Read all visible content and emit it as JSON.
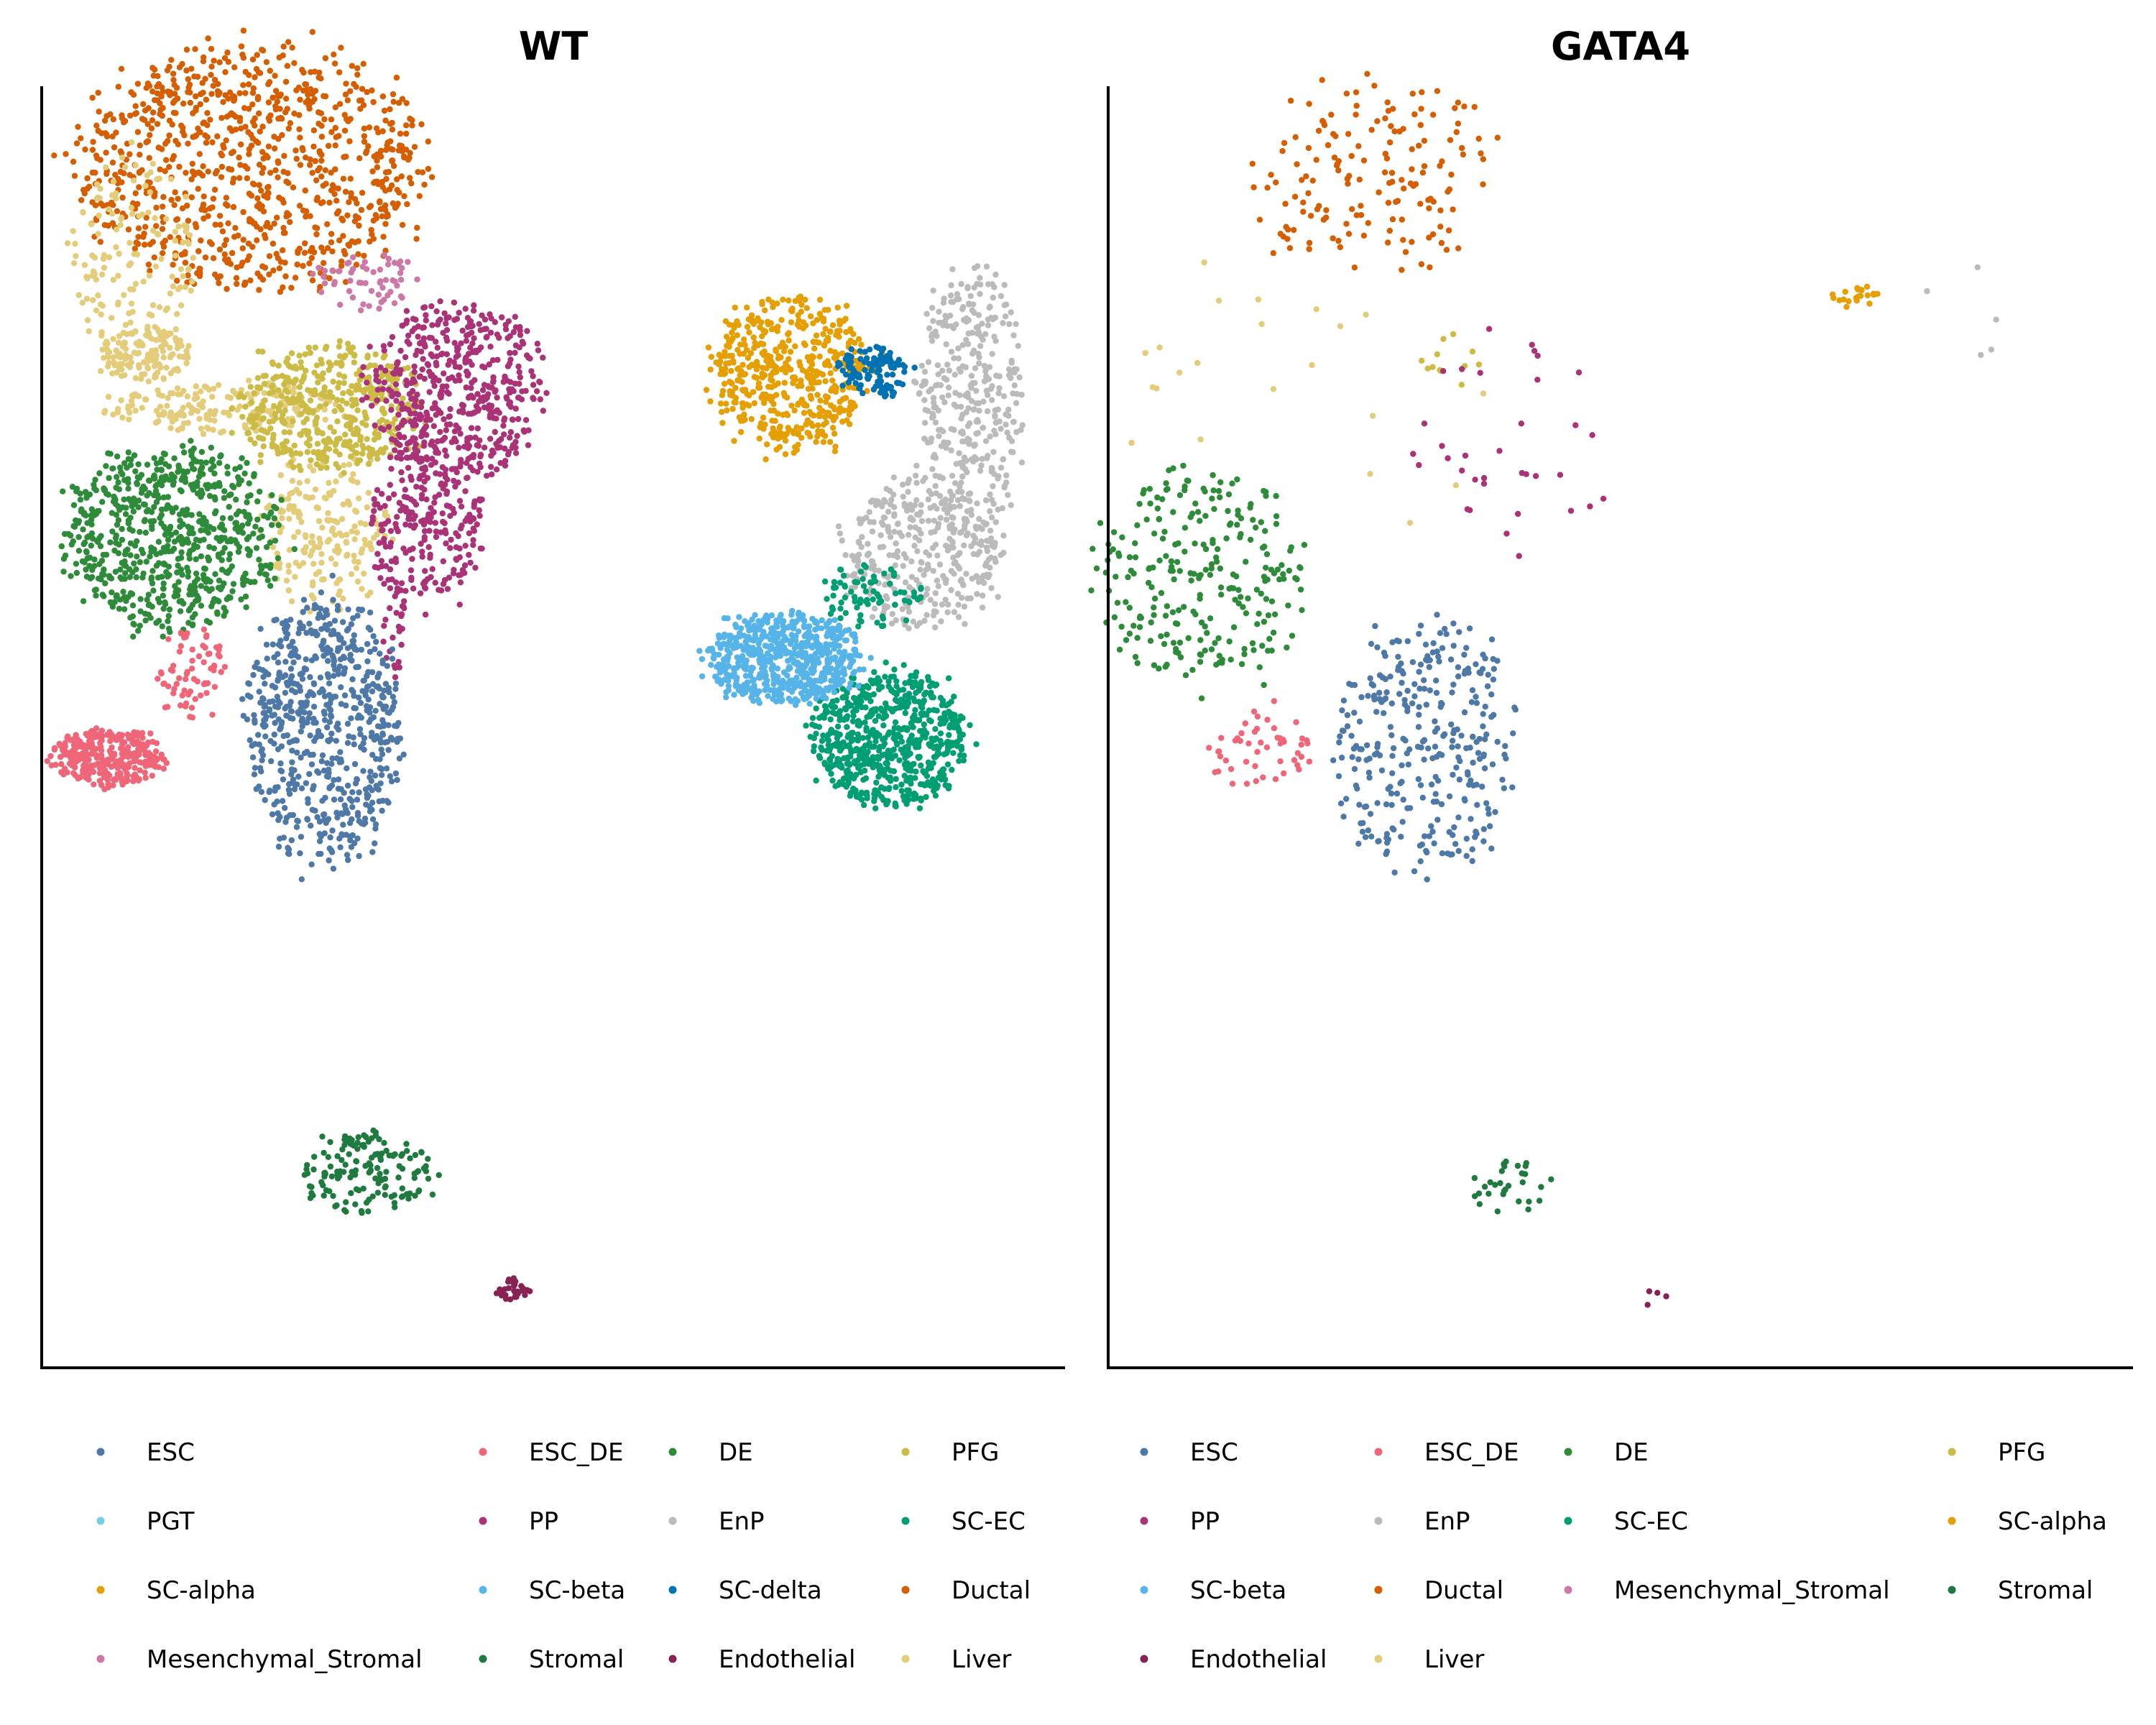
{
  "chart_data": {
    "type": "scatter",
    "colors": {
      "ESC": "#4e79a7",
      "PGT": "#6fd0e6",
      "SC-alpha": "#e69f00",
      "Mesenchymal_Stromal": "#cc79a7",
      "ESC_DE": "#ee6677",
      "PP": "#aa3377",
      "SC-beta": "#56b4e9",
      "Stromal": "#1f7a3f",
      "DE": "#2e8b3a",
      "EnP": "#bbbbbb",
      "SC-delta": "#0072b2",
      "Endothelial": "#882255",
      "PFG": "#ccbb44",
      "SC-EC": "#009e73",
      "Ductal": "#d55e00",
      "Liver": "#e3cc7a"
    },
    "panels": [
      {
        "title": "WT",
        "legend": [
          "ESC",
          "ESC_DE",
          "DE",
          "PFG",
          "PGT",
          "PP",
          "EnP",
          "SC-EC",
          "SC-alpha",
          "SC-beta",
          "SC-delta",
          "Ductal",
          "Mesenchymal_Stromal",
          "Stromal",
          "Endothelial",
          "Liver"
        ],
        "clusters": [
          {
            "type": "Ductal",
            "shape": "ell",
            "cx": -0.95,
            "cy": 7.9,
            "rx": 1.7,
            "ry": 1.35,
            "n": 900
          },
          {
            "type": "Liver",
            "shape": "ell",
            "cx": -2.1,
            "cy": 6.8,
            "rx": 0.6,
            "ry": 1.2,
            "n": 160
          },
          {
            "type": "Liver",
            "shape": "ell",
            "cx": -2.0,
            "cy": 5.8,
            "rx": 0.45,
            "ry": 0.3,
            "n": 120
          },
          {
            "type": "Liver",
            "shape": "ell",
            "cx": -1.2,
            "cy": 5.2,
            "rx": 1.2,
            "ry": 0.28,
            "n": 180
          },
          {
            "type": "Liver",
            "shape": "ell",
            "cx": -0.25,
            "cy": 3.8,
            "rx": 0.6,
            "ry": 0.9,
            "n": 200
          },
          {
            "type": "PFG",
            "shape": "ell",
            "cx": -0.2,
            "cy": 5.2,
            "rx": 0.9,
            "ry": 0.7,
            "n": 450
          },
          {
            "type": "PP",
            "shape": "ell",
            "cx": 1.05,
            "cy": 5.4,
            "rx": 0.85,
            "ry": 0.95,
            "n": 500
          },
          {
            "type": "PP",
            "shape": "ell",
            "cx": 0.75,
            "cy": 3.9,
            "rx": 0.55,
            "ry": 0.9,
            "n": 250
          },
          {
            "type": "PP",
            "shape": "ell",
            "cx": 0.45,
            "cy": 2.7,
            "rx": 0.12,
            "ry": 0.5,
            "n": 25
          },
          {
            "type": "Mesenchymal_Stromal",
            "shape": "ell",
            "cx": 0.15,
            "cy": 6.6,
            "rx": 0.55,
            "ry": 0.35,
            "n": 60
          },
          {
            "type": "DE",
            "shape": "ell",
            "cx": -1.75,
            "cy": 3.75,
            "rx": 1.05,
            "ry": 1.0,
            "n": 700
          },
          {
            "type": "ESC_DE",
            "shape": "ell",
            "cx": -2.35,
            "cy": 1.3,
            "rx": 0.55,
            "ry": 0.32,
            "n": 300
          },
          {
            "type": "ESC_DE",
            "shape": "ell",
            "cx": -1.55,
            "cy": 2.2,
            "rx": 0.35,
            "ry": 0.55,
            "n": 70
          },
          {
            "type": "ESC",
            "shape": "ell",
            "cx": -0.25,
            "cy": 1.6,
            "rx": 0.75,
            "ry": 1.45,
            "n": 650
          },
          {
            "type": "Stromal",
            "shape": "ell",
            "cx": 0.2,
            "cy": -3.35,
            "rx": 0.65,
            "ry": 0.45,
            "n": 150
          },
          {
            "type": "Endothelial",
            "shape": "ell",
            "cx": 1.6,
            "cy": -4.65,
            "rx": 0.18,
            "ry": 0.12,
            "n": 30
          },
          {
            "type": "SC-alpha",
            "shape": "ell",
            "cx": 4.3,
            "cy": 5.6,
            "rx": 0.75,
            "ry": 0.85,
            "n": 500
          },
          {
            "type": "SC-delta",
            "shape": "ell",
            "cx": 5.15,
            "cy": 5.6,
            "rx": 0.35,
            "ry": 0.3,
            "n": 120
          },
          {
            "type": "EnP",
            "shape": "ell",
            "cx": 6.1,
            "cy": 5.3,
            "rx": 0.5,
            "ry": 1.5,
            "n": 350
          },
          {
            "type": "EnP",
            "shape": "ell",
            "cx": 5.6,
            "cy": 3.6,
            "rx": 0.8,
            "ry": 0.85,
            "n": 350
          },
          {
            "type": "SC-EC",
            "shape": "ell",
            "cx": 5.3,
            "cy": 1.5,
            "rx": 0.75,
            "ry": 0.75,
            "n": 650
          },
          {
            "type": "SC-EC",
            "shape": "ell",
            "cx": 5.1,
            "cy": 3.1,
            "rx": 0.5,
            "ry": 0.35,
            "n": 80
          },
          {
            "type": "SC-beta",
            "shape": "ell",
            "cx": 4.25,
            "cy": 2.4,
            "rx": 0.75,
            "ry": 0.5,
            "n": 600
          }
        ]
      },
      {
        "title": "GATA4",
        "legend": [
          "ESC",
          "ESC_DE",
          "DE",
          "PFG",
          "PP",
          "EnP",
          "SC-EC",
          "SC-alpha",
          "SC-beta",
          "Ductal",
          "Mesenchymal_Stromal",
          "Stromal",
          "Endothelial",
          "Liver"
        ],
        "clusters": [
          {
            "type": "Ductal",
            "shape": "ell",
            "cx": -0.45,
            "cy": 7.8,
            "rx": 1.25,
            "ry": 1.1,
            "n": 160
          },
          {
            "type": "Liver",
            "shape": "ell",
            "cx": -1.0,
            "cy": 5.5,
            "rx": 2.3,
            "ry": 1.6,
            "n": 22
          },
          {
            "type": "PFG",
            "shape": "ell",
            "cx": 0.3,
            "cy": 5.7,
            "rx": 0.3,
            "ry": 0.35,
            "n": 12
          },
          {
            "type": "PP",
            "shape": "ell",
            "cx": 1.0,
            "cy": 4.8,
            "rx": 1.0,
            "ry": 1.3,
            "n": 35
          },
          {
            "type": "DE",
            "shape": "ell",
            "cx": -2.1,
            "cy": 3.3,
            "rx": 1.0,
            "ry": 1.2,
            "n": 260
          },
          {
            "type": "ESC_DE",
            "shape": "ell",
            "cx": -1.55,
            "cy": 1.4,
            "rx": 0.5,
            "ry": 0.5,
            "n": 50
          },
          {
            "type": "ESC",
            "shape": "ell",
            "cx": 0.1,
            "cy": 1.4,
            "rx": 0.9,
            "ry": 1.45,
            "n": 320
          },
          {
            "type": "SC-alpha",
            "shape": "ell",
            "cx": 4.3,
            "cy": 6.45,
            "rx": 0.25,
            "ry": 0.12,
            "n": 22
          },
          {
            "type": "EnP",
            "shape": "ell",
            "cx": 5.4,
            "cy": 6.2,
            "rx": 0.5,
            "ry": 0.6,
            "n": 5
          },
          {
            "type": "Stromal",
            "shape": "ell",
            "cx": 0.9,
            "cy": -3.5,
            "rx": 0.45,
            "ry": 0.3,
            "n": 30
          },
          {
            "type": "Endothelial",
            "shape": "ell",
            "cx": 2.35,
            "cy": -4.75,
            "rx": 0.12,
            "ry": 0.12,
            "n": 4
          }
        ]
      }
    ],
    "xlim": [
      -3,
      7
    ],
    "ylim": [
      -5.5,
      8.8
    ]
  },
  "panels_meta": [
    {
      "title": "WT"
    },
    {
      "title": "GATA4"
    }
  ]
}
